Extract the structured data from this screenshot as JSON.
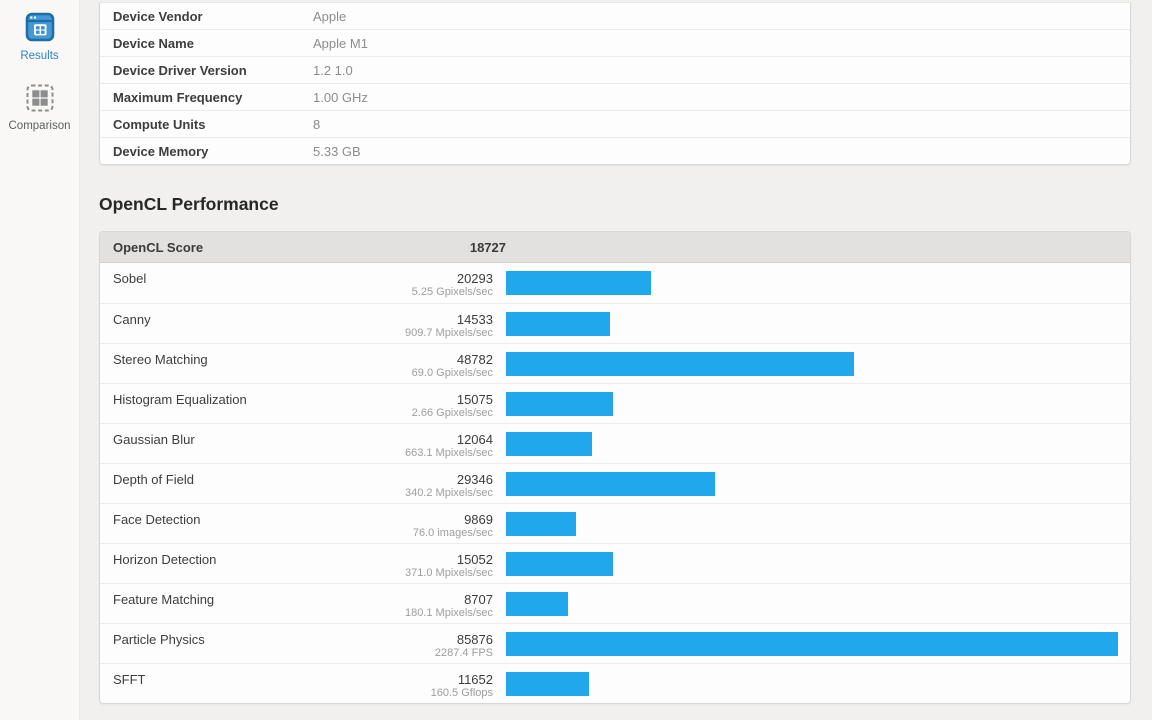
{
  "sidebar": {
    "items": [
      {
        "label": "Results",
        "icon": "results-icon",
        "active": true
      },
      {
        "label": "Comparison",
        "icon": "comparison-icon",
        "active": false
      }
    ]
  },
  "device_info": {
    "rows": [
      {
        "label": "Device Vendor",
        "value": "Apple"
      },
      {
        "label": "Device Name",
        "value": "Apple M1"
      },
      {
        "label": "Device Driver Version",
        "value": "1.2 1.0"
      },
      {
        "label": "Maximum Frequency",
        "value": "1.00 GHz"
      },
      {
        "label": "Compute Units",
        "value": "8"
      },
      {
        "label": "Device Memory",
        "value": "5.33 GB"
      }
    ]
  },
  "performance": {
    "heading": "OpenCL Performance",
    "score_label": "OpenCL Score",
    "score_value": "18727",
    "bar_color": "#21a7ec",
    "rows": [
      {
        "name": "Sobel",
        "score": 20293,
        "rate": "5.25 Gpixels/sec"
      },
      {
        "name": "Canny",
        "score": 14533,
        "rate": "909.7 Mpixels/sec"
      },
      {
        "name": "Stereo Matching",
        "score": 48782,
        "rate": "69.0 Gpixels/sec"
      },
      {
        "name": "Histogram Equalization",
        "score": 15075,
        "rate": "2.66 Gpixels/sec"
      },
      {
        "name": "Gaussian Blur",
        "score": 12064,
        "rate": "663.1 Mpixels/sec"
      },
      {
        "name": "Depth of Field",
        "score": 29346,
        "rate": "340.2 Mpixels/sec"
      },
      {
        "name": "Face Detection",
        "score": 9869,
        "rate": "76.0 images/sec"
      },
      {
        "name": "Horizon Detection",
        "score": 15052,
        "rate": "371.0 Mpixels/sec"
      },
      {
        "name": "Feature Matching",
        "score": 8707,
        "rate": "180.1 Mpixels/sec"
      },
      {
        "name": "Particle Physics",
        "score": 85876,
        "rate": "2287.4 FPS"
      },
      {
        "name": "SFFT",
        "score": 11652,
        "rate": "160.5 Gflops"
      }
    ]
  }
}
